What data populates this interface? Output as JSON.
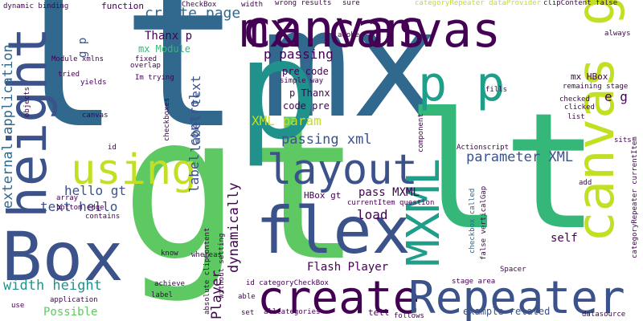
{
  "palette": {
    "dark_purple": "#440154",
    "indigo": "#3b528b",
    "blue": "#31688e",
    "teal": "#21918c",
    "green_teal": "#1f9e89",
    "green": "#35b779",
    "light_green": "#5ec962",
    "yellow_green": "#b5de2b",
    "yellow": "#c2df23"
  },
  "words": [
    "gt",
    "lt",
    "mx",
    "p",
    "canvas",
    "height",
    "Box",
    "flex",
    "create",
    "Repeater",
    "using",
    "layout",
    "MXML",
    "canvas gt",
    "mx canvas",
    "p p",
    "create page",
    "passing xml",
    "XML param",
    "parameter XML",
    "Thanx p",
    "mx Module",
    "p passing",
    "pre code",
    "p Thanx",
    "code pre",
    "simple way",
    "Im trying",
    "e g",
    "mx HBox",
    "label text",
    "label control",
    "dynamically",
    "Player",
    "external application",
    "width height",
    "text hello",
    "hello gt",
    "Possible",
    "Flash Player",
    "pass MXML",
    "load",
    "HBox gt",
    "self",
    "example related",
    "tell",
    "follows",
    "set",
    "allCategories",
    "datasource",
    "categoryRepeater currentItem",
    "checkbox called",
    "false verticalGap",
    "Spacer",
    "stage area",
    "currentItem question",
    "id categoryCheckBox",
    "without setting",
    "absolute clipContent",
    "whereas",
    "know",
    "able",
    "achieve",
    "label",
    "use",
    "application",
    "dynamic binding",
    "function",
    "CheckBox",
    "width",
    "wrong results",
    "sure",
    "categoryRepeater dataProvider",
    "clipContent false",
    "always",
    "remaining stage",
    "checked",
    "clicked",
    "list",
    "sits",
    "component",
    "fills",
    "adobe",
    "Actionscript",
    "add",
    "Module xmlns",
    "fixed",
    "overlap",
    "tried",
    "yields",
    "objects",
    "canvas",
    "checkboxes",
    "id",
    "array",
    "bottom edge",
    "contains",
    "g p"
  ]
}
